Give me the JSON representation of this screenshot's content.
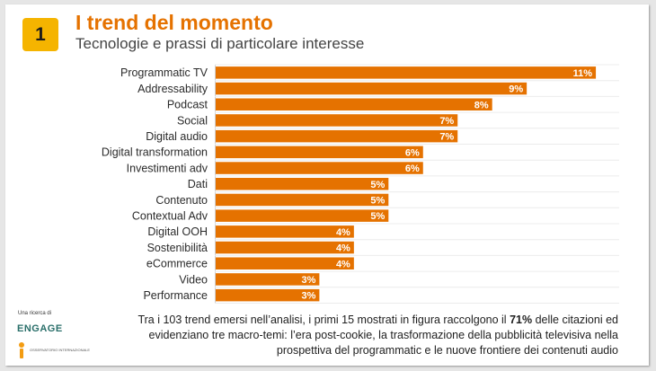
{
  "slide_number": "1",
  "title": "I trend del momento",
  "subtitle": "Tecnologie e prassi di particolare interesse",
  "chart_data": {
    "type": "bar",
    "orientation": "horizontal",
    "categories": [
      "Programmatic TV",
      "Addressability",
      "Podcast",
      "Social",
      "Digital audio",
      "Digital transformation",
      "Investimenti adv",
      "Dati",
      "Contenuto",
      "Contextual Adv",
      "Digital OOH",
      "Sostenibilità",
      "eCommerce",
      "Video",
      "Performance"
    ],
    "values": [
      11,
      9,
      8,
      7,
      7,
      6,
      6,
      5,
      5,
      5,
      4,
      4,
      4,
      3,
      3
    ],
    "labels": [
      "11%",
      "9%",
      "8%",
      "7%",
      "7%",
      "6%",
      "6%",
      "5%",
      "5%",
      "5%",
      "4%",
      "4%",
      "4%",
      "3%",
      "3%"
    ],
    "unit": "%",
    "xlim": [
      0,
      11.7
    ],
    "bar_color": "#e57200",
    "label_color": "#ffffff"
  },
  "note": {
    "part1": "Tra i 103 trend emersi nell’analisi, i primi 15 mostrati in figura raccolgono il ",
    "highlight": "71%",
    "part2": " delle citazioni ed evidenziano tre macro-temi: l’era post-cookie, la trasformazione della pubblicità televisiva nella prospettiva del programmatic e le nuove frontiere dei contenuti audio"
  },
  "credit": {
    "label": "Una ricerca di",
    "logo": "ENGAGE",
    "sub": "OSSERVATORIO INTERNAZIONALE"
  },
  "colors": {
    "accent": "#e57200",
    "badge": "#f5b400"
  }
}
